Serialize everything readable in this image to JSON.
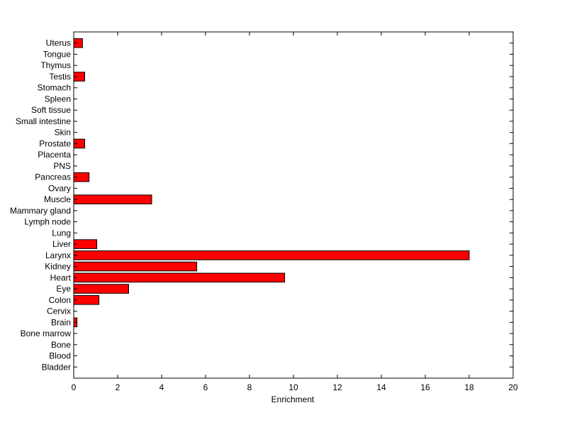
{
  "chart_data": {
    "type": "bar",
    "orientation": "horizontal",
    "title": "",
    "xlabel": "Enrichment",
    "ylabel": "",
    "xlim": [
      0,
      20
    ],
    "xticks": [
      0,
      2,
      4,
      6,
      8,
      10,
      12,
      14,
      16,
      18,
      20
    ],
    "grid": false,
    "legend": "none",
    "bar_color": "#ff0000",
    "edge_color": "#000000",
    "categories": [
      "Bladder",
      "Blood",
      "Bone",
      "Bone marrow",
      "Brain",
      "Cervix",
      "Colon",
      "Eye",
      "Heart",
      "Kidney",
      "Larynx",
      "Liver",
      "Lung",
      "Lymph node",
      "Mammary gland",
      "Muscle",
      "Ovary",
      "Pancreas",
      "PNS",
      "Placenta",
      "Prostate",
      "Skin",
      "Small intestine",
      "Soft tissue",
      "Spleen",
      "Stomach",
      "Testis",
      "Thymus",
      "Tongue",
      "Uterus"
    ],
    "values": [
      0,
      0,
      0,
      0,
      0.15,
      0,
      1.15,
      2.5,
      9.6,
      5.6,
      18.0,
      1.05,
      0,
      0,
      0,
      3.55,
      0,
      0.7,
      0,
      0,
      0.5,
      0,
      0,
      0,
      0,
      0,
      0.5,
      0,
      0,
      0.4
    ]
  }
}
